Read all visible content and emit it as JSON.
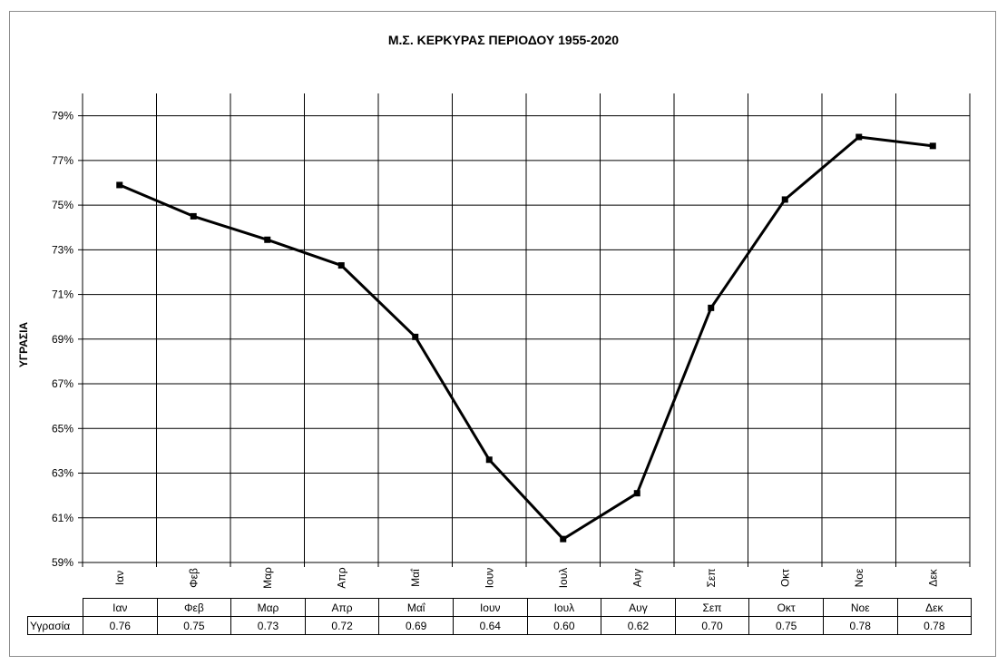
{
  "chart_data": {
    "type": "line",
    "title": "Μ.Σ. ΚΕΡΚΥΡΑΣ ΠΕΡΙΟΔΟΥ 1955-2020",
    "ylabel": "ΥΓΡΑΣΙΑ",
    "xlabel": "",
    "ylim": [
      59,
      80
    ],
    "yticks": [
      59,
      61,
      63,
      65,
      67,
      69,
      71,
      73,
      75,
      77,
      79
    ],
    "ytick_labels": [
      "59%",
      "61%",
      "63%",
      "65%",
      "67%",
      "69%",
      "71%",
      "73%",
      "75%",
      "77%",
      "79%"
    ],
    "categories": [
      "Ιαν",
      "Φεβ",
      "Μαρ",
      "Απρ",
      "Μαΐ",
      "Ιουν",
      "Ιουλ",
      "Αυγ",
      "Σεπ",
      "Οκτ",
      "Νοε",
      "Δεκ"
    ],
    "series": [
      {
        "name": "Υγρασία",
        "values": [
          75.9,
          74.5,
          73.45,
          72.3,
          69.1,
          63.6,
          60.05,
          62.1,
          70.4,
          75.25,
          78.05,
          77.65
        ],
        "color": "#000000"
      }
    ],
    "grid": true,
    "legend": "none"
  },
  "data_table": {
    "row_label": "Υγρασία",
    "values": [
      "0.76",
      "0.75",
      "0.73",
      "0.72",
      "0.69",
      "0.64",
      "0.60",
      "0.62",
      "0.70",
      "0.75",
      "0.78",
      "0.78"
    ]
  }
}
